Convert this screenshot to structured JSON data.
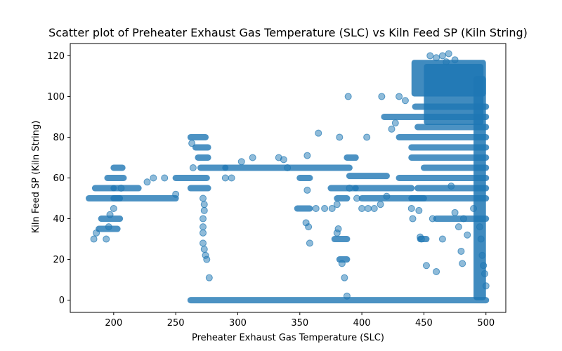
{
  "chart_data": {
    "type": "scatter",
    "title": "Scatter plot of Preheater Exhaust Gas Temperature (SLC) vs Kiln Feed  SP  (Kiln String)",
    "xlabel": "Preheater Exhaust Gas Temperature (SLC)",
    "ylabel": "Kiln Feed  SP  (Kiln String)",
    "xlim": [
      165,
      516
    ],
    "ylim": [
      -6,
      126
    ],
    "xticks": [
      200,
      250,
      300,
      350,
      400,
      450,
      500
    ],
    "yticks": [
      0,
      20,
      40,
      60,
      80,
      100,
      120
    ],
    "grid": false,
    "marker_color": "#1f77b4",
    "marker_opacity": 0.5,
    "segments": [
      {
        "x": [
          180,
          205
        ],
        "y": 50
      },
      {
        "x": [
          190,
          205
        ],
        "y": 40
      },
      {
        "x": [
          188,
          203
        ],
        "y": 35
      },
      {
        "x": [
          185,
          200
        ],
        "y": 55
      },
      {
        "x": [
          195,
          208
        ],
        "y": 60
      },
      {
        "x": [
          200,
          207
        ],
        "y": 65
      },
      {
        "x": [
          200,
          220
        ],
        "y": 55
      },
      {
        "x": [
          200,
          250
        ],
        "y": 50
      },
      {
        "x": [
          250,
          275
        ],
        "y": 60
      },
      {
        "x": [
          262,
          274
        ],
        "y": 80
      },
      {
        "x": [
          266,
          276
        ],
        "y": 75
      },
      {
        "x": [
          268,
          276
        ],
        "y": 70
      },
      {
        "x": [
          262,
          276
        ],
        "y": 55
      },
      {
        "x": [
          270,
          290
        ],
        "y": 65
      },
      {
        "x": [
          290,
          390
        ],
        "y": 65
      },
      {
        "x": [
          350,
          358
        ],
        "y": 60
      },
      {
        "x": [
          348,
          358
        ],
        "y": 45
      },
      {
        "x": [
          375,
          395
        ],
        "y": 55
      },
      {
        "x": [
          380,
          388
        ],
        "y": 50
      },
      {
        "x": [
          378,
          388
        ],
        "y": 30
      },
      {
        "x": [
          382,
          388
        ],
        "y": 20
      },
      {
        "x": [
          388,
          395
        ],
        "y": 70
      },
      {
        "x": [
          390,
          420
        ],
        "y": 61
      },
      {
        "x": [
          395,
          440
        ],
        "y": 55
      },
      {
        "x": [
          400,
          450
        ],
        "y": 50
      },
      {
        "x": [
          418,
          500
        ],
        "y": 90
      },
      {
        "x": [
          430,
          500
        ],
        "y": 80
      },
      {
        "x": [
          440,
          500
        ],
        "y": 70
      },
      {
        "x": [
          445,
          500
        ],
        "y": 85
      },
      {
        "x": [
          430,
          500
        ],
        "y": 60
      },
      {
        "x": [
          450,
          500
        ],
        "y": 65
      },
      {
        "x": [
          460,
          500
        ],
        "y": 40
      },
      {
        "x": [
          440,
          500
        ],
        "y": 50
      },
      {
        "x": [
          445,
          500
        ],
        "y": 55
      },
      {
        "x": [
          440,
          500
        ],
        "y": 75
      },
      {
        "x": [
          443,
          500
        ],
        "y": 95
      },
      {
        "x": [
          262,
          500
        ],
        "y": 0
      },
      {
        "x": [
          447,
          452
        ],
        "y": 30
      }
    ],
    "dense_blocks": [
      {
        "x": [
          440,
          500
        ],
        "y": [
          100,
          118
        ]
      },
      {
        "x": [
          450,
          498
        ],
        "y": [
          86,
          116
        ]
      },
      {
        "x": [
          490,
          500
        ],
        "y": [
          0,
          110
        ]
      }
    ],
    "scatter_points": [
      [
        200,
        45
      ],
      [
        184,
        30
      ],
      [
        186,
        33
      ],
      [
        194,
        30
      ],
      [
        196,
        36
      ],
      [
        197,
        42
      ],
      [
        206,
        55
      ],
      [
        227,
        58
      ],
      [
        232,
        60
      ],
      [
        241,
        60
      ],
      [
        250,
        52
      ],
      [
        263,
        77
      ],
      [
        264,
        65
      ],
      [
        272,
        50
      ],
      [
        273,
        47
      ],
      [
        273,
        44
      ],
      [
        272,
        40
      ],
      [
        272,
        36
      ],
      [
        272,
        33
      ],
      [
        272,
        28
      ],
      [
        273,
        25
      ],
      [
        274,
        22
      ],
      [
        275,
        20
      ],
      [
        277,
        11
      ],
      [
        295,
        60
      ],
      [
        290,
        60
      ],
      [
        303,
        68
      ],
      [
        312,
        70
      ],
      [
        333,
        70
      ],
      [
        337,
        69
      ],
      [
        340,
        65
      ],
      [
        356,
        71
      ],
      [
        356,
        54
      ],
      [
        355,
        38
      ],
      [
        357,
        36
      ],
      [
        358,
        28
      ],
      [
        363,
        45
      ],
      [
        365,
        82
      ],
      [
        370,
        45
      ],
      [
        376,
        45
      ],
      [
        382,
        80
      ],
      [
        380,
        47
      ],
      [
        381,
        35
      ],
      [
        380,
        33
      ],
      [
        384,
        18
      ],
      [
        386,
        11
      ],
      [
        388,
        2
      ],
      [
        389,
        100
      ],
      [
        390,
        55
      ],
      [
        396,
        50
      ],
      [
        400,
        45
      ],
      [
        404,
        80
      ],
      [
        405,
        45
      ],
      [
        410,
        45
      ],
      [
        415,
        47
      ],
      [
        416,
        100
      ],
      [
        420,
        51
      ],
      [
        424,
        84
      ],
      [
        427,
        87
      ],
      [
        430,
        100
      ],
      [
        435,
        98
      ],
      [
        440,
        45
      ],
      [
        441,
        40
      ],
      [
        446,
        44
      ],
      [
        447,
        31
      ],
      [
        448,
        30
      ],
      [
        452,
        17
      ],
      [
        457,
        40
      ],
      [
        460,
        14
      ],
      [
        465,
        30
      ],
      [
        472,
        56
      ],
      [
        475,
        43
      ],
      [
        478,
        36
      ],
      [
        480,
        24
      ],
      [
        481,
        18
      ],
      [
        482,
        40
      ],
      [
        485,
        32
      ],
      [
        490,
        45
      ],
      [
        495,
        36
      ],
      [
        496,
        30
      ],
      [
        497,
        22
      ],
      [
        498,
        17
      ],
      [
        499,
        13
      ],
      [
        500,
        7
      ],
      [
        455,
        120
      ],
      [
        465,
        120
      ],
      [
        470,
        121
      ],
      [
        475,
        118
      ],
      [
        460,
        119
      ],
      [
        468,
        117
      ]
    ]
  }
}
